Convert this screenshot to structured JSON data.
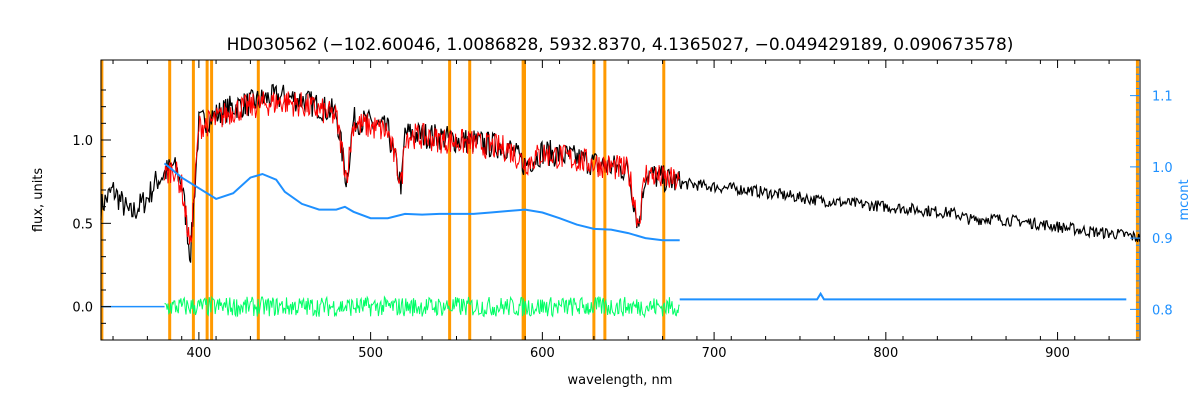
{
  "chart_data": {
    "type": "line",
    "title": "HD030562   (−102.60046, 1.0086828, 5932.8370, 4.1365027, −0.049429189, 0.090673578)",
    "xlabel": "wavelength, nm",
    "ylabel": "flux, units",
    "y2label": "mcont",
    "xlim": [
      343,
      948
    ],
    "ylim": [
      -0.2,
      1.48
    ],
    "y2lim": [
      0.757,
      1.15
    ],
    "xticks": [
      400,
      500,
      600,
      700,
      800,
      900
    ],
    "yticks": [
      0.0,
      0.5,
      1.0
    ],
    "y2ticks": [
      0.8,
      0.9,
      1.0,
      1.1
    ],
    "xtick_labels": [
      "400",
      "500",
      "600",
      "700",
      "800",
      "900"
    ],
    "ytick_labels": [
      "0.0",
      "0.5",
      "1.0"
    ],
    "y2tick_labels": [
      "0.8",
      "0.9",
      "1.0",
      "1.1"
    ],
    "grid": false,
    "colors": {
      "observed": "#000000",
      "model": "#ff0000",
      "residuals": "#00ff66",
      "mcont": "#1e90ff",
      "mask": "#ff9900",
      "axis2": "#1e90ff"
    },
    "mask_lines_nm": [
      343.5,
      383,
      396.8,
      404.8,
      407.4,
      434.6,
      546,
      557.7,
      588.8,
      589.6,
      630,
      636.4,
      670.7,
      946.5
    ],
    "series": [
      {
        "key": "observed",
        "axis": "left",
        "x": [
          343,
          350,
          360,
          370,
          375,
          380,
          385,
          390,
          395,
          400,
          410,
          420,
          430,
          440,
          450,
          460,
          470,
          480,
          486,
          490,
          500,
          510,
          518,
          520,
          530,
          540,
          550,
          560,
          570,
          580,
          590,
          600,
          610,
          620,
          630,
          640,
          650,
          656,
          660,
          670,
          680,
          700,
          720,
          740,
          760,
          780,
          800,
          820,
          840,
          850,
          860,
          880,
          900,
          920,
          940,
          948
        ],
        "y": [
          0.6,
          0.7,
          0.55,
          0.65,
          0.75,
          0.8,
          0.85,
          0.75,
          0.3,
          1.1,
          1.15,
          1.2,
          1.22,
          1.25,
          1.26,
          1.24,
          1.2,
          1.16,
          0.75,
          1.12,
          1.1,
          1.06,
          0.72,
          1.04,
          1.03,
          1.02,
          1.0,
          0.99,
          0.97,
          0.96,
          0.85,
          0.93,
          0.91,
          0.89,
          0.86,
          0.84,
          0.82,
          0.48,
          0.8,
          0.77,
          0.74,
          0.72,
          0.7,
          0.67,
          0.64,
          0.62,
          0.6,
          0.58,
          0.56,
          0.52,
          0.53,
          0.51,
          0.48,
          0.45,
          0.43,
          0.41
        ]
      },
      {
        "key": "model",
        "axis": "left",
        "x": [
          380,
          385,
          390,
          395,
          400,
          410,
          420,
          430,
          440,
          450,
          460,
          470,
          480,
          486,
          490,
          500,
          510,
          518,
          520,
          530,
          540,
          550,
          560,
          570,
          580,
          590,
          600,
          610,
          620,
          630,
          640,
          650,
          656,
          660,
          670,
          680
        ],
        "y": [
          0.78,
          0.84,
          0.72,
          0.35,
          1.08,
          1.12,
          1.18,
          1.2,
          1.22,
          1.23,
          1.21,
          1.18,
          1.14,
          0.78,
          1.1,
          1.08,
          1.05,
          0.74,
          1.03,
          1.02,
          1.0,
          0.99,
          0.98,
          0.96,
          0.95,
          0.86,
          0.92,
          0.9,
          0.88,
          0.86,
          0.84,
          0.82,
          0.5,
          0.8,
          0.77,
          0.75
        ]
      },
      {
        "key": "mcont",
        "axis": "right",
        "x": [
          380,
          390,
          400,
          410,
          420,
          430,
          437,
          445,
          450,
          460,
          470,
          480,
          485,
          490,
          500,
          510,
          520,
          530,
          540,
          550,
          560,
          570,
          580,
          590,
          600,
          610,
          620,
          630,
          640,
          650,
          660,
          670,
          680
        ],
        "y": [
          1.005,
          0.985,
          0.97,
          0.955,
          0.963,
          0.985,
          0.99,
          0.982,
          0.965,
          0.948,
          0.94,
          0.94,
          0.944,
          0.937,
          0.928,
          0.928,
          0.934,
          0.933,
          0.934,
          0.934,
          0.934,
          0.936,
          0.938,
          0.94,
          0.936,
          0.928,
          0.919,
          0.913,
          0.912,
          0.907,
          0.9,
          0.897,
          0.897
        ]
      },
      {
        "key": "mcont_continuation",
        "axis": "right",
        "x": [
          680,
          720,
          760,
          762,
          764,
          800,
          810,
          850,
          900,
          940
        ],
        "y": [
          0.814,
          0.814,
          0.814,
          0.822,
          0.814,
          0.814,
          0.814,
          0.814,
          0.814,
          0.814
        ]
      },
      {
        "key": "residuals",
        "axis": "left",
        "x_range": [
          380,
          680
        ],
        "center": 0.0,
        "amplitude": 0.06
      }
    ]
  }
}
